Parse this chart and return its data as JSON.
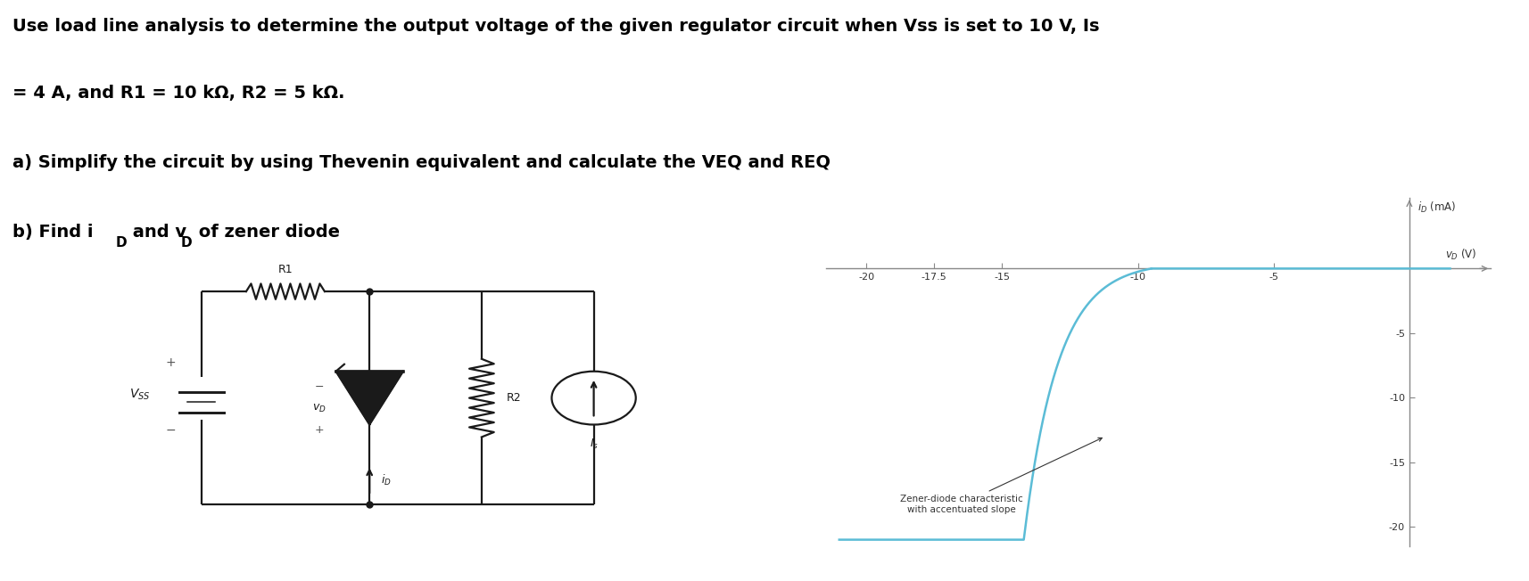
{
  "title_line1": "Use load line analysis to determine the output voltage of the given regulator circuit when Vss is set to 10 V, Is",
  "title_line2": "= 4 A, and R1 = 10 kΩ, R2 = 5 kΩ.",
  "subtitle_a": "a) Simplify the circuit by using Thevenin equivalent and calculate the VEQ and REQ",
  "subtitle_b": "b) Find i",
  "subtitle_b_sub": "D",
  "subtitle_b_mid": " and v",
  "subtitle_b_sub2": "D",
  "subtitle_b_end": " of zener diode",
  "xlabel": "v_D (V)",
  "ylabel": "i_D (mA)",
  "annotation": "Zener-diode characteristic\nwith accentuated slope",
  "x_ticks": [
    -20,
    -17.5,
    -15,
    -10,
    -5
  ],
  "y_ticks": [
    -20,
    -15,
    -10,
    -5
  ],
  "bg_color": "#ffffff",
  "curve_color": "#5bbcd6",
  "axis_color": "#888888",
  "text_color": "#000000",
  "title_fontsize": 14,
  "body_fontsize": 14
}
